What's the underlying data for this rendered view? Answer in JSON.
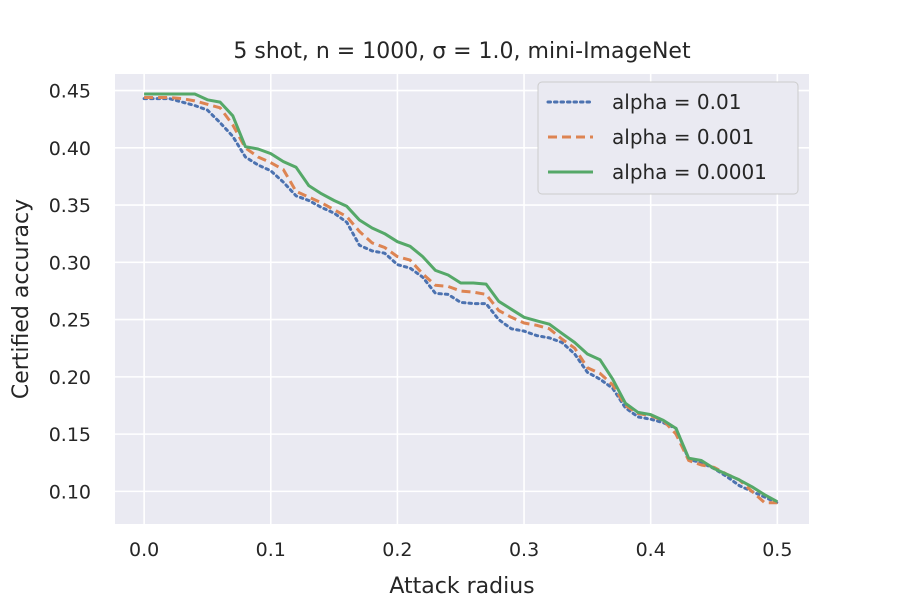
{
  "chart_data": {
    "type": "line",
    "title": "5 shot, n = 1000, σ = 1.0, mini-ImageNet",
    "xlabel": "Attack radius",
    "ylabel": "Certified accuracy",
    "xlim": [
      -0.023,
      0.525
    ],
    "ylim": [
      0.0715,
      0.4645
    ],
    "xticks": [
      "0.0",
      "0.1",
      "0.2",
      "0.3",
      "0.4",
      "0.5"
    ],
    "yticks": [
      "0.10",
      "0.15",
      "0.20",
      "0.25",
      "0.30",
      "0.35",
      "0.40",
      "0.45"
    ],
    "grid": true,
    "legend_position": "upper right",
    "x": [
      0.0,
      0.01,
      0.02,
      0.03,
      0.04,
      0.05,
      0.06,
      0.07,
      0.08,
      0.09,
      0.1,
      0.11,
      0.12,
      0.13,
      0.14,
      0.15,
      0.16,
      0.17,
      0.18,
      0.19,
      0.2,
      0.21,
      0.22,
      0.23,
      0.24,
      0.25,
      0.26,
      0.27,
      0.28,
      0.29,
      0.3,
      0.31,
      0.32,
      0.33,
      0.34,
      0.35,
      0.36,
      0.37,
      0.38,
      0.39,
      0.4,
      0.41,
      0.42,
      0.43,
      0.44,
      0.45,
      0.46,
      0.47,
      0.48,
      0.49,
      0.5
    ],
    "series": [
      {
        "name": "alpha = 0.01",
        "color": "#4c72b0",
        "dash": "dotted",
        "values": [
          0.443,
          0.443,
          0.443,
          0.44,
          0.437,
          0.433,
          0.422,
          0.41,
          0.392,
          0.385,
          0.38,
          0.37,
          0.358,
          0.354,
          0.348,
          0.343,
          0.335,
          0.315,
          0.31,
          0.308,
          0.298,
          0.295,
          0.287,
          0.273,
          0.272,
          0.265,
          0.264,
          0.264,
          0.25,
          0.242,
          0.24,
          0.236,
          0.234,
          0.23,
          0.22,
          0.204,
          0.198,
          0.19,
          0.173,
          0.165,
          0.163,
          0.16,
          0.155,
          0.128,
          0.125,
          0.12,
          0.113,
          0.105,
          0.1,
          0.095,
          0.09
        ]
      },
      {
        "name": "alpha = 0.001",
        "color": "#dd8452",
        "dash": "dashed",
        "values": [
          0.444,
          0.444,
          0.444,
          0.443,
          0.441,
          0.438,
          0.435,
          0.42,
          0.4,
          0.392,
          0.387,
          0.381,
          0.362,
          0.357,
          0.352,
          0.346,
          0.34,
          0.327,
          0.317,
          0.313,
          0.305,
          0.302,
          0.29,
          0.28,
          0.279,
          0.275,
          0.274,
          0.272,
          0.258,
          0.252,
          0.247,
          0.245,
          0.242,
          0.233,
          0.225,
          0.208,
          0.203,
          0.193,
          0.175,
          0.168,
          0.166,
          0.162,
          0.15,
          0.127,
          0.123,
          0.121,
          0.115,
          0.11,
          0.1,
          0.09,
          0.09
        ]
      },
      {
        "name": "alpha = 0.0001",
        "color": "#55a868",
        "dash": "solid",
        "values": [
          0.447,
          0.447,
          0.447,
          0.447,
          0.447,
          0.442,
          0.44,
          0.428,
          0.401,
          0.399,
          0.395,
          0.388,
          0.383,
          0.367,
          0.36,
          0.354,
          0.349,
          0.337,
          0.33,
          0.325,
          0.318,
          0.314,
          0.305,
          0.293,
          0.289,
          0.282,
          0.282,
          0.281,
          0.266,
          0.259,
          0.252,
          0.249,
          0.246,
          0.238,
          0.23,
          0.22,
          0.215,
          0.198,
          0.177,
          0.169,
          0.167,
          0.162,
          0.155,
          0.129,
          0.127,
          0.12,
          0.115,
          0.11,
          0.104,
          0.097,
          0.091
        ]
      }
    ]
  }
}
